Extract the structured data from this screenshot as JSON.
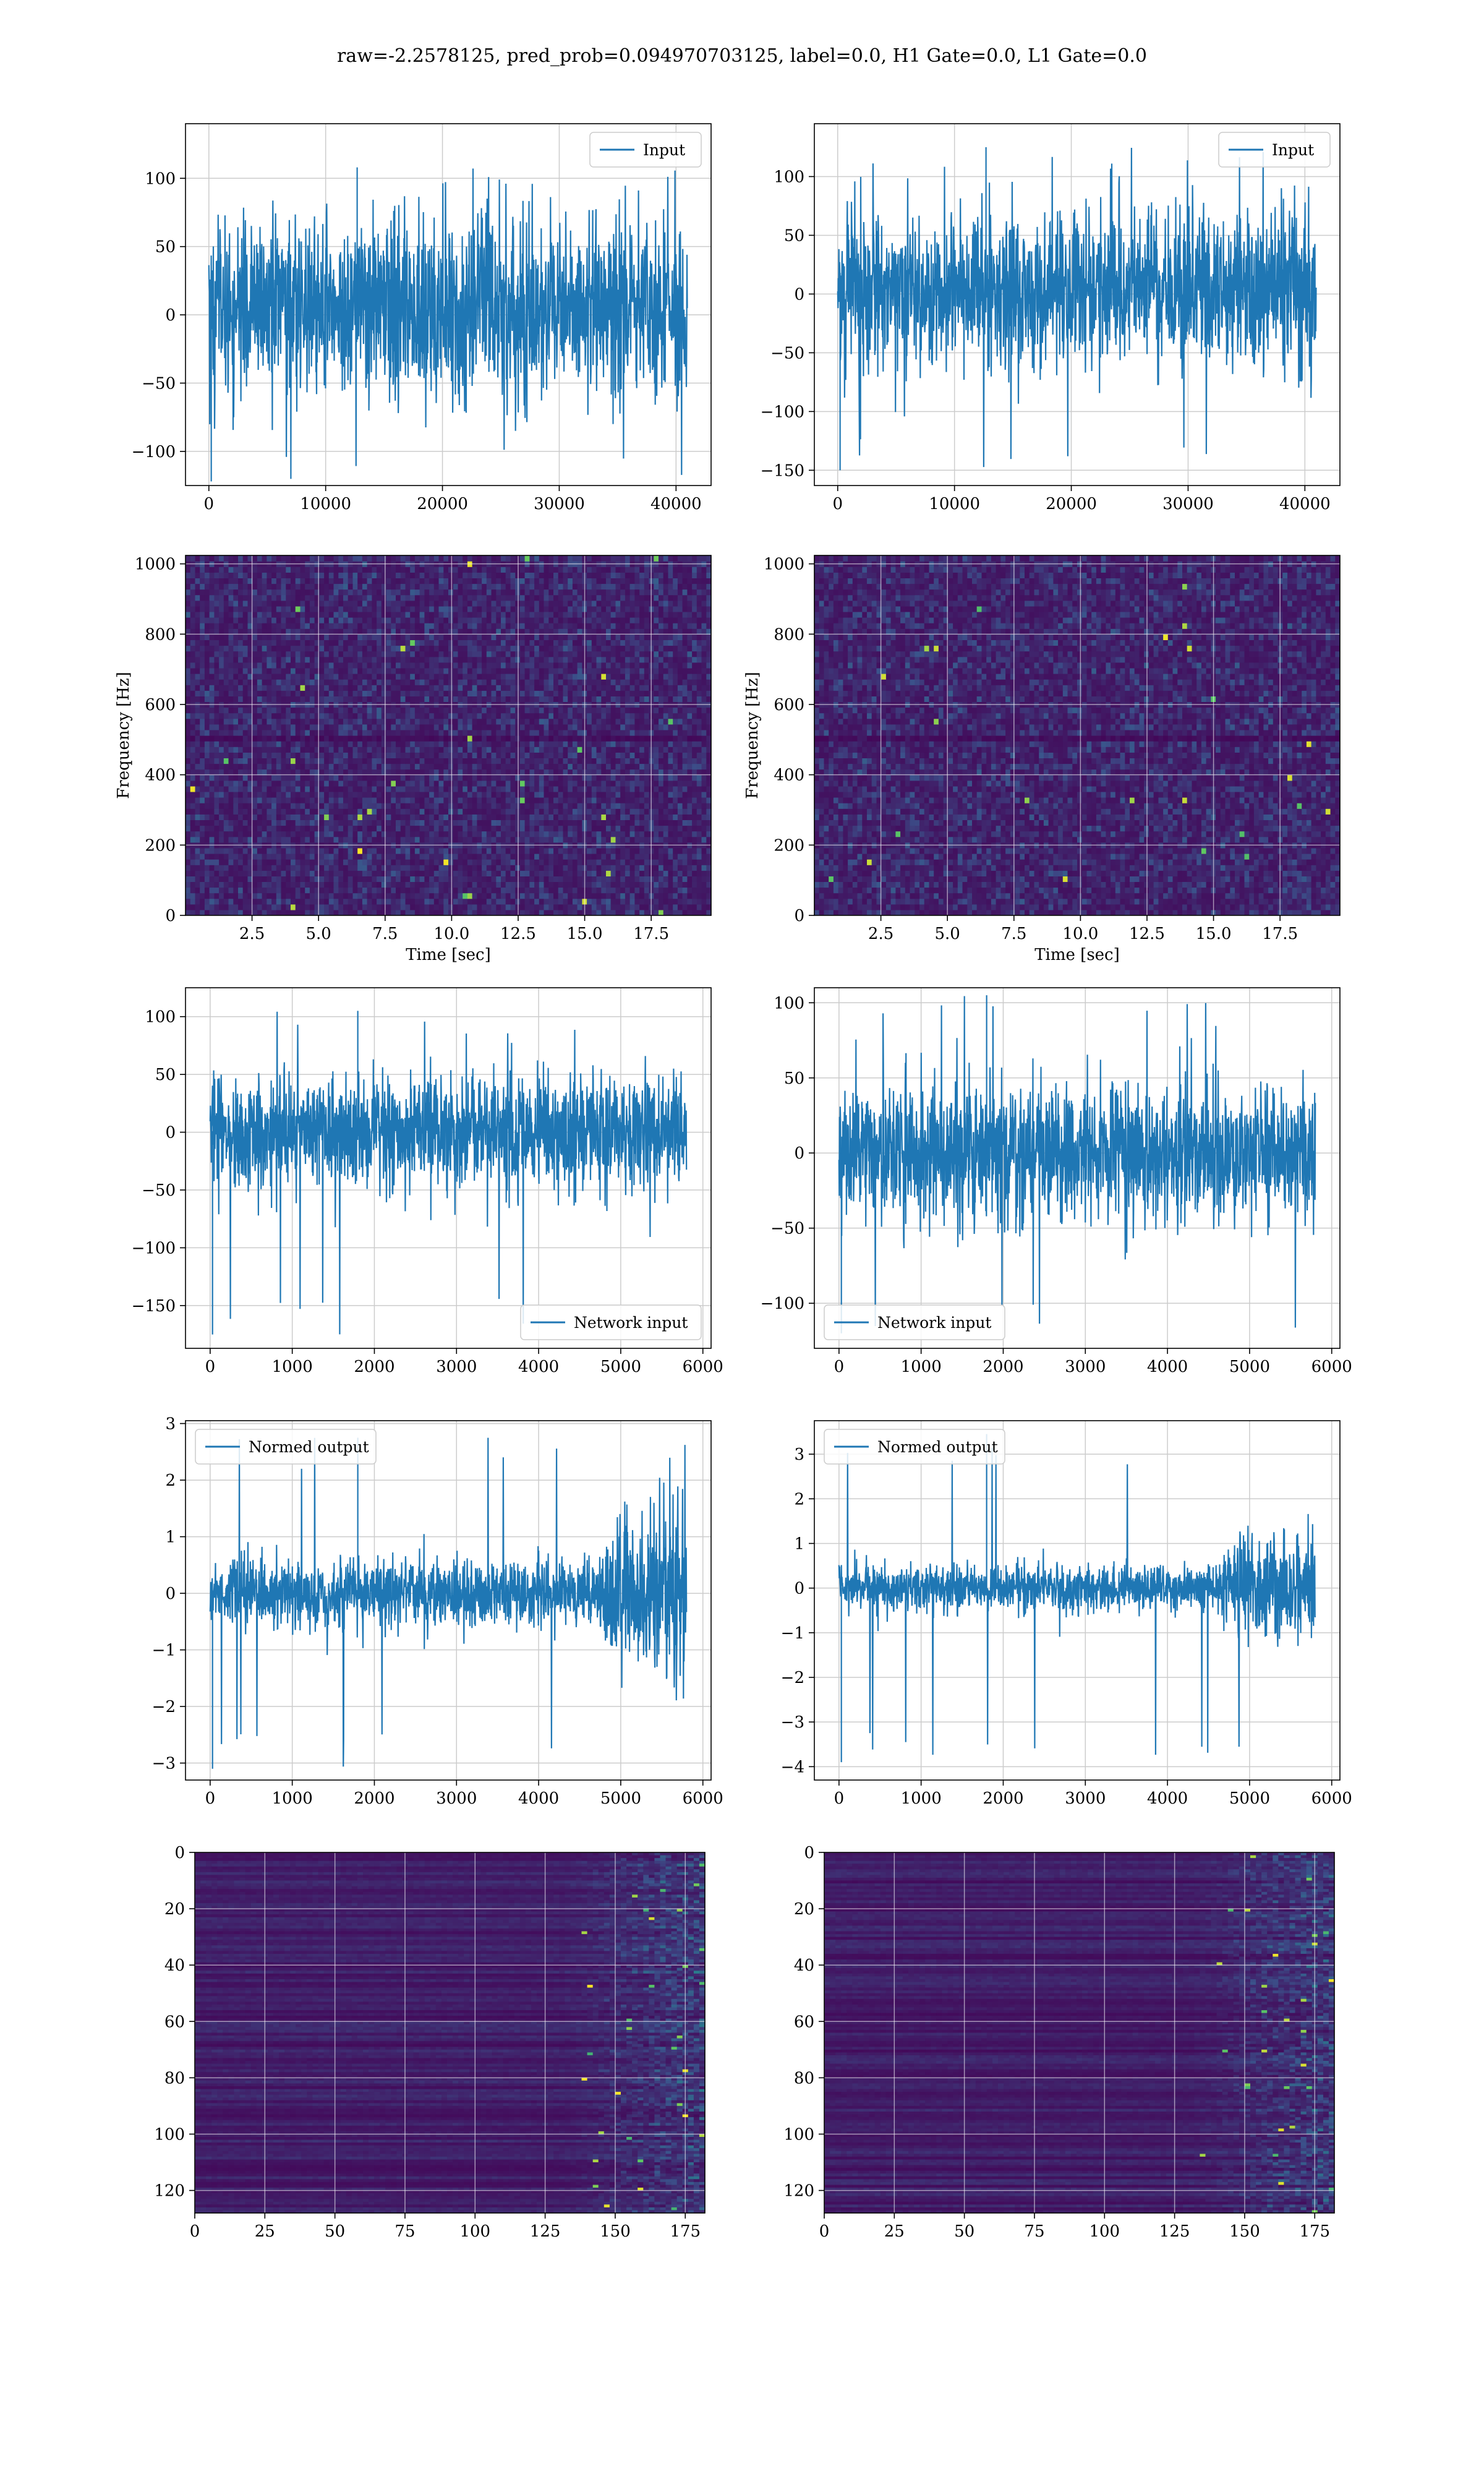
{
  "suptitle": "raw=-2.2578125, pred_prob=0.094970703125, label=0.0, H1 Gate=0.0, L1 Gate=0.0",
  "colors": {
    "line": "#1f77b4",
    "grid": "#cccccc",
    "viridis_dark": "#440154",
    "viridis_mid": "#21918c",
    "viridis_bright": "#fde725"
  },
  "chart_data": [
    {
      "id": "input-h1",
      "type": "line",
      "legend": [
        "Input"
      ],
      "legend_loc": "upper right",
      "xlim": [
        -2000,
        43000
      ],
      "ylim": [
        -125,
        140
      ],
      "xticks": [
        0,
        10000,
        20000,
        30000,
        40000
      ],
      "yticks": [
        -100,
        -50,
        0,
        50,
        100
      ],
      "series": [
        {
          "name": "Input",
          "x_range": [
            0,
            40960
          ],
          "band_typical": [
            -60,
            70
          ],
          "band_extreme": [
            -122,
            108
          ]
        }
      ]
    },
    {
      "id": "input-l1",
      "type": "line",
      "legend": [
        "Input"
      ],
      "legend_loc": "upper right",
      "xlim": [
        -2000,
        43000
      ],
      "ylim": [
        -163,
        145
      ],
      "xticks": [
        0,
        10000,
        20000,
        30000,
        40000
      ],
      "yticks": [
        -150,
        -100,
        -50,
        0,
        50,
        100
      ],
      "series": [
        {
          "name": "Input",
          "x_range": [
            0,
            40960
          ],
          "band_typical": [
            -60,
            70
          ],
          "band_extreme": [
            -150,
            125
          ]
        }
      ]
    },
    {
      "id": "spectrogram-h1",
      "type": "heatmap",
      "xlabel": "Time [sec]",
      "ylabel": "Frequency [Hz]",
      "xlim": [
        0,
        19.75
      ],
      "ylim": [
        0,
        1024
      ],
      "xticks": [
        2.5,
        5.0,
        7.5,
        10.0,
        12.5,
        15.0,
        17.5
      ],
      "xtick_labels": [
        "2.5",
        "5.0",
        "7.5",
        "10.0",
        "12.5",
        "15.0",
        "17.5"
      ],
      "yticks": [
        0,
        200,
        400,
        600,
        800,
        1000
      ],
      "colormap": "viridis",
      "dark_band_hz": 500
    },
    {
      "id": "spectrogram-l1",
      "type": "heatmap",
      "xlabel": "Time [sec]",
      "ylabel": "Frequency [Hz]",
      "xlim": [
        0,
        19.75
      ],
      "ylim": [
        0,
        1024
      ],
      "xticks": [
        2.5,
        5.0,
        7.5,
        10.0,
        12.5,
        15.0,
        17.5
      ],
      "xtick_labels": [
        "2.5",
        "5.0",
        "7.5",
        "10.0",
        "12.5",
        "15.0",
        "17.5"
      ],
      "yticks": [
        0,
        200,
        400,
        600,
        800,
        1000
      ],
      "colormap": "viridis",
      "dark_band_hz": 500
    },
    {
      "id": "network-input-h1",
      "type": "line",
      "legend": [
        "Network input"
      ],
      "legend_loc": "lower right",
      "xlim": [
        -300,
        6100
      ],
      "ylim": [
        -187,
        125
      ],
      "xticks": [
        0,
        1000,
        2000,
        3000,
        4000,
        5000,
        6000
      ],
      "yticks": [
        -150,
        -100,
        -50,
        0,
        50,
        100
      ],
      "series": [
        {
          "name": "Network input",
          "x_range": [
            0,
            5800
          ],
          "band_typical": [
            -48,
            50
          ],
          "band_extreme": [
            -175,
            105
          ]
        }
      ]
    },
    {
      "id": "network-input-l1",
      "type": "line",
      "legend": [
        "Network input"
      ],
      "legend_loc": "lower left",
      "xlim": [
        -300,
        6100
      ],
      "ylim": [
        -130,
        110
      ],
      "xticks": [
        0,
        1000,
        2000,
        3000,
        4000,
        5000,
        6000
      ],
      "yticks": [
        -100,
        -50,
        0,
        50,
        100
      ],
      "series": [
        {
          "name": "Network input",
          "x_range": [
            0,
            5800
          ],
          "band_typical": [
            -45,
            45
          ],
          "band_extreme": [
            -120,
            105
          ]
        }
      ]
    },
    {
      "id": "normed-output-h1",
      "type": "line",
      "legend": [
        "Normed output"
      ],
      "legend_loc": "upper left",
      "xlim": [
        -300,
        6100
      ],
      "ylim": [
        -3.3,
        3.05
      ],
      "xticks": [
        0,
        1000,
        2000,
        3000,
        4000,
        5000,
        6000
      ],
      "yticks": [
        -3,
        -2,
        -1,
        0,
        1,
        2,
        3
      ],
      "series": [
        {
          "name": "Normed output",
          "x_range": [
            0,
            5800
          ],
          "band_typical": [
            -0.6,
            0.6
          ],
          "burst_start": 4700,
          "burst_amplitude": 1.5,
          "band_extreme": [
            -3.1,
            2.75
          ]
        }
      ]
    },
    {
      "id": "normed-output-l1",
      "type": "line",
      "legend": [
        "Normed output"
      ],
      "legend_loc": "upper left",
      "xlim": [
        -300,
        6100
      ],
      "ylim": [
        -4.3,
        3.75
      ],
      "xticks": [
        0,
        1000,
        2000,
        3000,
        4000,
        5000,
        6000
      ],
      "yticks": [
        -4,
        -3,
        -2,
        -1,
        0,
        1,
        2,
        3
      ],
      "series": [
        {
          "name": "Normed output",
          "x_range": [
            0,
            5800
          ],
          "band_typical": [
            -0.5,
            0.5
          ],
          "burst_start": 4600,
          "burst_amplitude": 1.5,
          "band_extreme": [
            -3.9,
            3.45
          ]
        }
      ]
    },
    {
      "id": "embedding-h1",
      "type": "heatmap",
      "xlim": [
        0,
        182
      ],
      "ylim": [
        128,
        0
      ],
      "xticks": [
        0,
        25,
        50,
        75,
        100,
        125,
        150,
        175
      ],
      "yticks": [
        0,
        20,
        40,
        60,
        80,
        100,
        120
      ],
      "colormap": "viridis",
      "activity_start_x": 130
    },
    {
      "id": "embedding-l1",
      "type": "heatmap",
      "xlim": [
        0,
        182
      ],
      "ylim": [
        128,
        0
      ],
      "xticks": [
        0,
        25,
        50,
        75,
        100,
        125,
        150,
        175
      ],
      "yticks": [
        0,
        20,
        40,
        60,
        80,
        100,
        120
      ],
      "colormap": "viridis",
      "activity_start_x": 130
    }
  ]
}
